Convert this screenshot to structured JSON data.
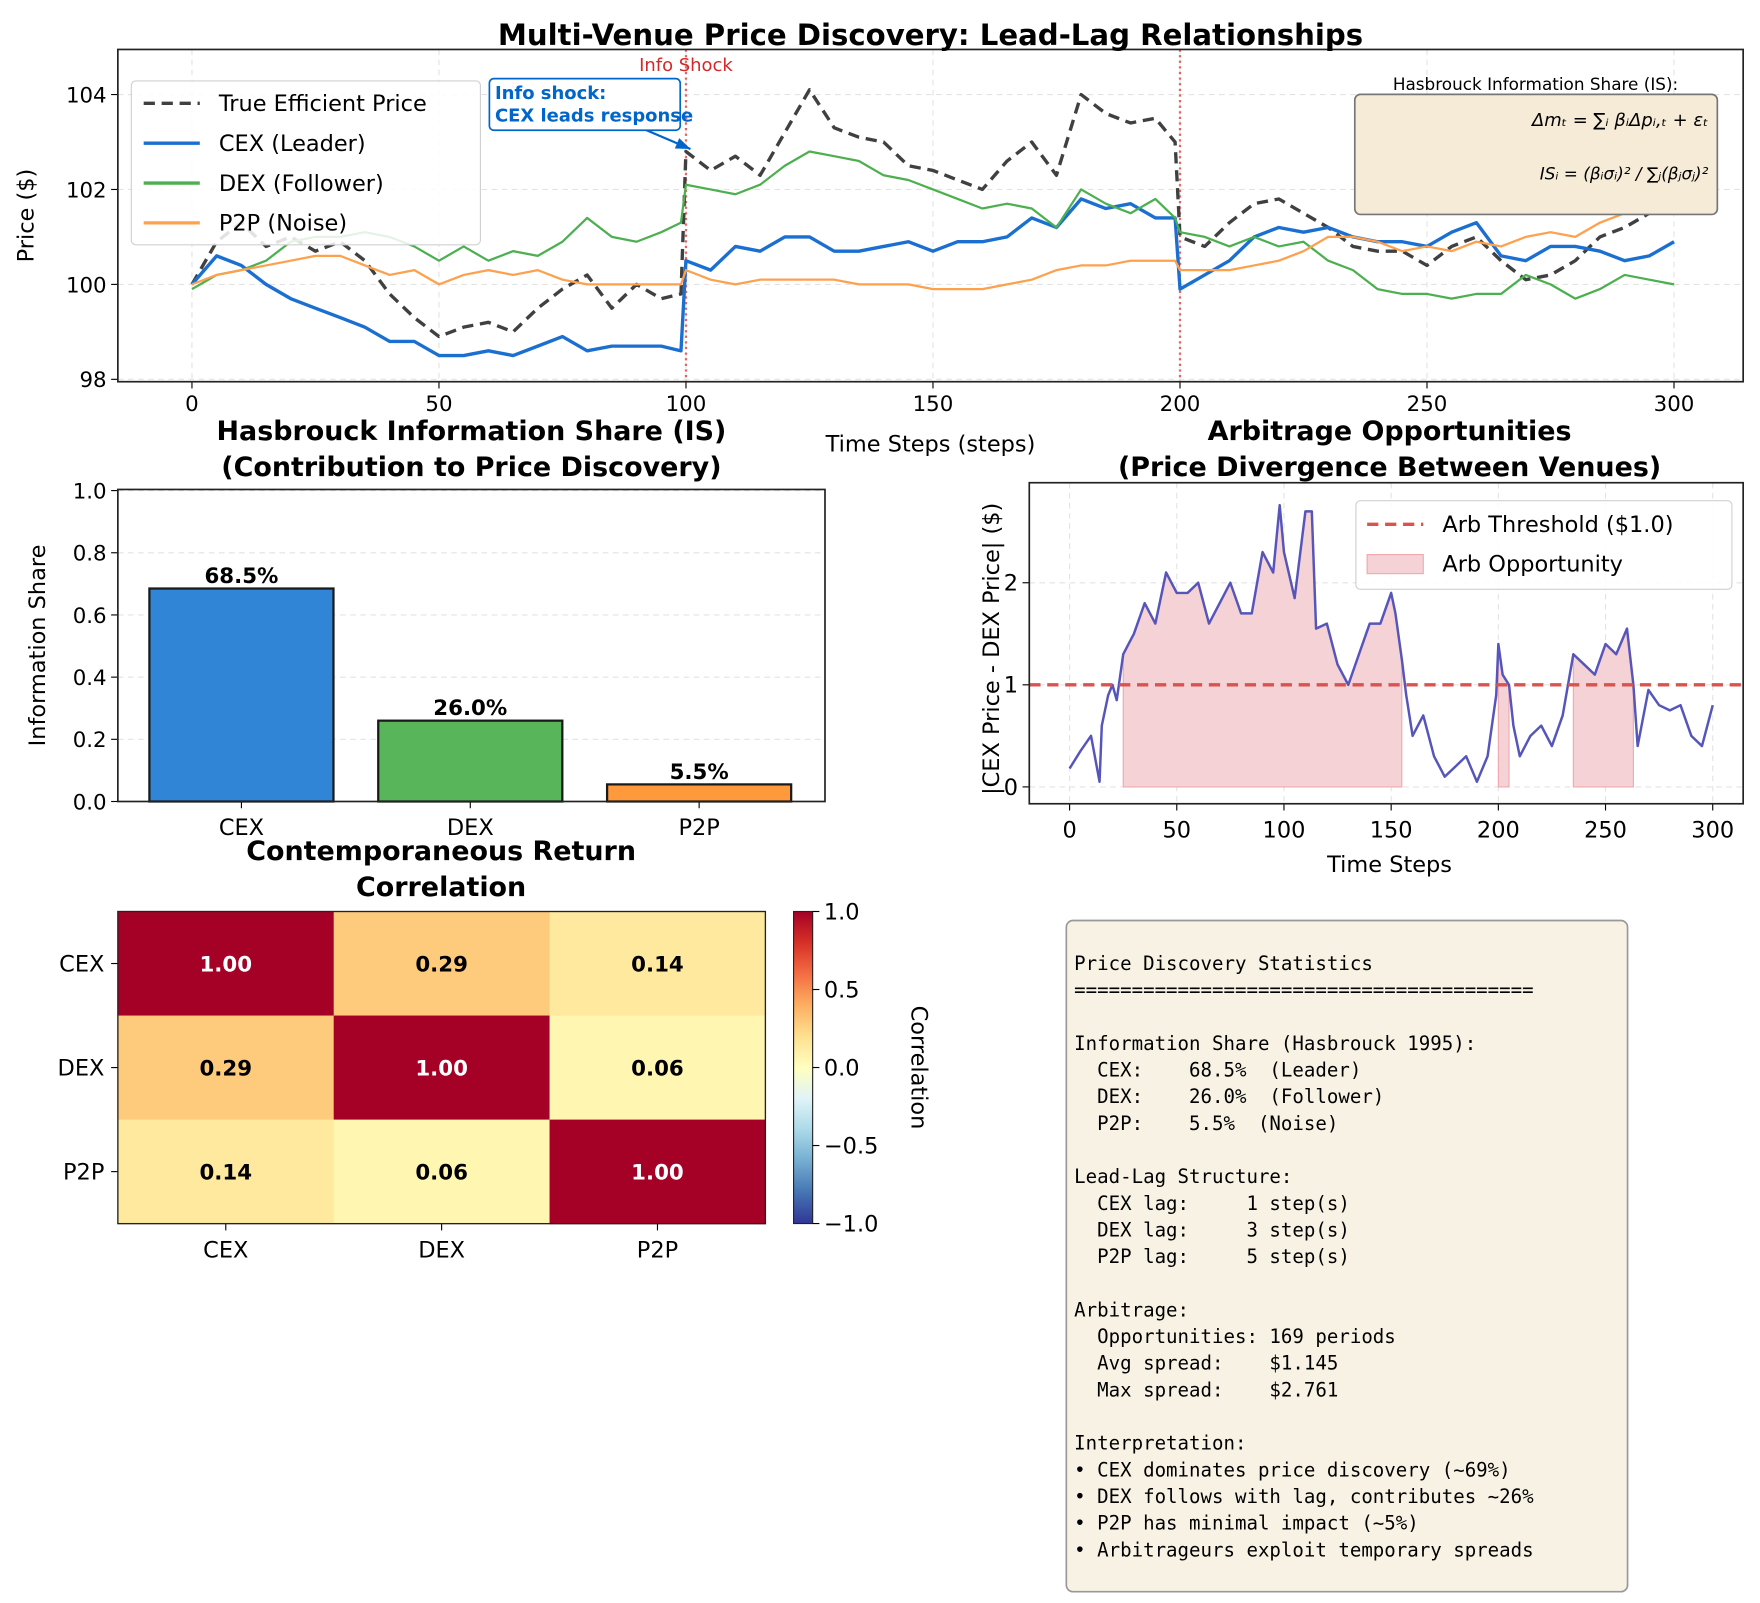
{
  "chart_data": [
    {
      "type": "line",
      "title": "Multi-Venue Price Discovery: Lead-Lag Relationships",
      "xlabel": "Time Steps (steps)",
      "ylabel": "Price ($)",
      "xlim": [
        -15,
        314
      ],
      "ylim": [
        97.95,
        104.95
      ],
      "xticks": [
        0,
        50,
        100,
        150,
        200,
        250,
        300
      ],
      "yticks": [
        98,
        100,
        102,
        104
      ],
      "grid": true,
      "legend": "upper-left",
      "x": [
        0,
        5,
        10,
        15,
        20,
        25,
        30,
        35,
        40,
        45,
        50,
        55,
        60,
        65,
        70,
        75,
        80,
        85,
        90,
        95,
        99,
        100,
        105,
        110,
        115,
        120,
        125,
        130,
        135,
        140,
        145,
        150,
        155,
        160,
        165,
        170,
        175,
        180,
        185,
        190,
        195,
        199,
        200,
        205,
        210,
        215,
        220,
        225,
        230,
        235,
        240,
        245,
        250,
        255,
        260,
        265,
        270,
        275,
        280,
        285,
        290,
        295,
        300
      ],
      "series": [
        {
          "name": "True Efficient Price",
          "color": "#404040",
          "style": "dashed",
          "y": [
            100,
            100.9,
            101.3,
            100.8,
            101.0,
            100.7,
            100.9,
            100.5,
            99.8,
            99.3,
            98.9,
            99.1,
            99.2,
            99.0,
            99.5,
            99.9,
            100.2,
            99.5,
            100.0,
            99.7,
            99.8,
            102.8,
            102.4,
            102.7,
            102.3,
            103.2,
            104.1,
            103.3,
            103.1,
            103.0,
            102.5,
            102.4,
            102.2,
            102.0,
            102.6,
            103.0,
            102.3,
            104.0,
            103.6,
            103.4,
            103.5,
            103.0,
            101.0,
            100.8,
            101.3,
            101.7,
            101.8,
            101.5,
            101.2,
            100.8,
            100.7,
            100.7,
            100.4,
            100.8,
            101.0,
            100.5,
            100.1,
            100.2,
            100.5,
            101.0,
            101.2,
            101.5,
            101.7
          ]
        },
        {
          "name": "CEX (Leader)",
          "color": "#1a6fd1",
          "style": "solid",
          "y": [
            100.0,
            100.6,
            100.4,
            100.0,
            99.7,
            99.5,
            99.3,
            99.1,
            98.8,
            98.8,
            98.5,
            98.5,
            98.6,
            98.5,
            98.7,
            98.9,
            98.6,
            98.7,
            98.7,
            98.7,
            98.6,
            100.5,
            100.3,
            100.8,
            100.7,
            101.0,
            101.0,
            100.7,
            100.7,
            100.8,
            100.9,
            100.7,
            100.9,
            100.9,
            101.0,
            101.4,
            101.2,
            101.8,
            101.6,
            101.7,
            101.4,
            101.4,
            99.9,
            100.2,
            100.5,
            101.0,
            101.2,
            101.1,
            101.2,
            101.0,
            100.9,
            100.9,
            100.8,
            101.1,
            101.3,
            100.6,
            100.5,
            100.8,
            100.8,
            100.7,
            100.5,
            100.6,
            100.9
          ]
        },
        {
          "name": "DEX (Follower)",
          "color": "#4caf50",
          "style": "solid",
          "y": [
            99.9,
            100.2,
            100.3,
            100.5,
            100.9,
            101.0,
            101.0,
            101.1,
            101.0,
            100.8,
            100.5,
            100.8,
            100.5,
            100.7,
            100.6,
            100.9,
            101.4,
            101.0,
            100.9,
            101.1,
            101.3,
            102.1,
            102.0,
            101.9,
            102.1,
            102.5,
            102.8,
            102.7,
            102.6,
            102.3,
            102.2,
            102.0,
            101.8,
            101.6,
            101.7,
            101.6,
            101.2,
            102.0,
            101.7,
            101.5,
            101.8,
            101.4,
            101.1,
            101.0,
            100.8,
            101.0,
            100.8,
            100.9,
            100.5,
            100.3,
            99.9,
            99.8,
            99.8,
            99.7,
            99.8,
            99.8,
            100.2,
            100.0,
            99.7,
            99.9,
            100.2,
            100.1,
            100.0
          ]
        },
        {
          "name": "P2P (Noise)",
          "color": "#ffa04d",
          "style": "solid",
          "y": [
            100.0,
            100.2,
            100.3,
            100.4,
            100.5,
            100.6,
            100.6,
            100.4,
            100.2,
            100.3,
            100.0,
            100.2,
            100.3,
            100.2,
            100.3,
            100.1,
            100.0,
            100.0,
            100.0,
            100.0,
            100.0,
            100.3,
            100.1,
            100.0,
            100.1,
            100.1,
            100.1,
            100.1,
            100.0,
            100.0,
            100.0,
            99.9,
            99.9,
            99.9,
            100.0,
            100.1,
            100.3,
            100.4,
            100.4,
            100.5,
            100.5,
            100.5,
            100.3,
            100.3,
            100.3,
            100.4,
            100.5,
            100.7,
            101.0,
            101.0,
            100.9,
            100.7,
            100.8,
            100.7,
            100.9,
            100.8,
            101.0,
            101.1,
            101.0,
            101.3,
            101.5,
            101.6,
            101.8
          ]
        }
      ],
      "vlines": [
        {
          "x": 100,
          "color": "#e06666",
          "label": "Info Shock"
        },
        {
          "x": 200,
          "color": "#e06666"
        }
      ],
      "annotation": {
        "lines": [
          "Info shock:",
          "CEX leads response"
        ],
        "x": 100,
        "y": 102.9,
        "color": "#0066cc"
      },
      "textbox": {
        "title": "Hasbrouck Information Share (IS):",
        "formula_1": "Δmₜ = ∑ᵢ βᵢΔpᵢ,ₜ + εₜ",
        "formula_2": "ISᵢ = (βᵢσᵢ)² / ∑ⱼ(βⱼσⱼ)²",
        "background": "#f5ebd7"
      }
    },
    {
      "type": "bar",
      "title": [
        "Hasbrouck Information Share (IS)",
        "(Contribution to Price Discovery)"
      ],
      "xlabel": "",
      "ylabel": "Information Share",
      "categories": [
        "CEX",
        "DEX",
        "P2P"
      ],
      "values": [
        0.685,
        0.26,
        0.055
      ],
      "value_labels": [
        "68.5%",
        "26.0%",
        "5.5%"
      ],
      "colors": [
        "#3185d6",
        "#58b55a",
        "#ff9a3c"
      ],
      "ylim": [
        0,
        1.0
      ],
      "yticks": [
        "0.0",
        "0.2",
        "0.4",
        "0.6",
        "0.8",
        "1.0"
      ],
      "grid": true
    },
    {
      "type": "line",
      "title": [
        "Arbitrage Opportunities",
        "(Price Divergence Between Venues)"
      ],
      "xlabel": "Time Steps",
      "ylabel": "|CEX Price - DEX Price| ($)",
      "xlim": [
        -18.8,
        314.2
      ],
      "ylim": [
        -0.165,
        2.98
      ],
      "xticks": [
        0,
        50,
        100,
        150,
        200,
        250,
        300
      ],
      "yticks": [
        0,
        1,
        2
      ],
      "grid": true,
      "legend": "upper-right",
      "line_color": "#5555bb",
      "x": [
        0,
        5,
        10,
        14,
        15,
        18,
        20,
        22,
        25,
        30,
        35,
        40,
        45,
        50,
        55,
        60,
        65,
        70,
        75,
        80,
        85,
        90,
        95,
        98,
        100,
        105,
        110,
        113,
        115,
        120,
        125,
        130,
        135,
        140,
        145,
        150,
        152,
        155,
        157,
        160,
        165,
        170,
        175,
        180,
        185,
        190,
        195,
        199,
        200,
        202,
        205,
        207,
        210,
        215,
        220,
        225,
        230,
        235,
        240,
        245,
        250,
        255,
        260,
        263,
        265,
        270,
        275,
        280,
        285,
        290,
        295,
        300
      ],
      "y": [
        0.18,
        0.35,
        0.5,
        0.05,
        0.6,
        0.9,
        1.0,
        0.85,
        1.3,
        1.5,
        1.8,
        1.6,
        2.1,
        1.9,
        1.9,
        2.0,
        1.6,
        1.8,
        2.0,
        1.7,
        1.7,
        2.3,
        2.1,
        2.76,
        2.3,
        1.85,
        2.7,
        2.7,
        1.55,
        1.6,
        1.2,
        1.0,
        1.3,
        1.6,
        1.6,
        1.9,
        1.7,
        1.25,
        0.9,
        0.5,
        0.7,
        0.3,
        0.1,
        0.2,
        0.3,
        0.05,
        0.3,
        0.9,
        1.4,
        1.1,
        1.0,
        0.6,
        0.3,
        0.5,
        0.6,
        0.4,
        0.7,
        1.3,
        1.2,
        1.1,
        1.4,
        1.3,
        1.55,
        1.0,
        0.4,
        0.95,
        0.8,
        0.75,
        0.8,
        0.5,
        0.4,
        0.8
      ],
      "threshold": {
        "value": 1.0,
        "label": "Arb Threshold ($1.0)",
        "color": "#d9534f"
      },
      "fill": {
        "label": "Arb Opportunity",
        "color": "#f4d2d6"
      }
    },
    {
      "type": "heatmap",
      "title": [
        "Contemporaneous Return",
        "Correlation"
      ],
      "rows": [
        "CEX",
        "DEX",
        "P2P"
      ],
      "cols": [
        "CEX",
        "DEX",
        "P2P"
      ],
      "values": [
        [
          1.0,
          0.29,
          0.14
        ],
        [
          0.29,
          1.0,
          0.06
        ],
        [
          0.14,
          0.06,
          1.0
        ]
      ],
      "value_labels": [
        [
          "1.00",
          "0.29",
          "0.14"
        ],
        [
          "0.29",
          "1.00",
          "0.06"
        ],
        [
          "0.14",
          "0.06",
          "1.00"
        ]
      ],
      "colormap": "RdYlBu_r",
      "vmin": -1,
      "vmax": 1,
      "colorbar": {
        "label": "Correlation",
        "ticks": [
          "1.0",
          "0.5",
          "0.0",
          "−0.5",
          "−1.0"
        ]
      }
    }
  ],
  "stats_panel": {
    "lines": [
      "Price Discovery Statistics",
      "========================================",
      "",
      "Information Share (Hasbrouck 1995):",
      "  CEX:    68.5%  (Leader)",
      "  DEX:    26.0%  (Follower)",
      "  P2P:    5.5%  (Noise)",
      "",
      "Lead-Lag Structure:",
      "  CEX lag:     1 step(s)",
      "  DEX lag:     3 step(s)",
      "  P2P lag:     5 step(s)",
      "",
      "Arbitrage:",
      "  Opportunities: 169 periods",
      "  Avg spread:    $1.145",
      "  Max spread:    $2.761",
      "",
      "Interpretation:",
      "• CEX dominates price discovery (~69%)",
      "• DEX follows with lag, contributes ~26%",
      "• P2P has minimal impact (~5%)",
      "• Arbitrageurs exploit temporary spreads"
    ],
    "background": "#f8f2e5"
  }
}
